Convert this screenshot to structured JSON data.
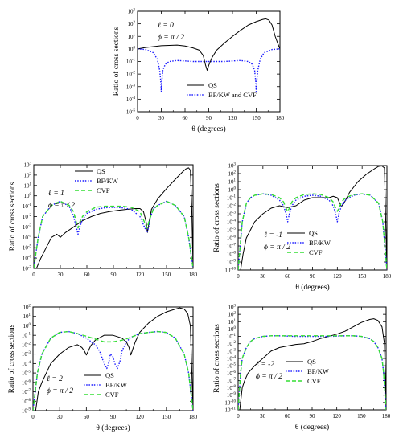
{
  "chart_data": [
    {
      "type": "line",
      "ylabel": "Ratio of cross sections",
      "xlabel": "θ (degrees)",
      "xlim": [
        0,
        180
      ],
      "xticks": [
        0,
        30,
        60,
        90,
        120,
        150,
        180
      ],
      "ylog": true,
      "ylim_exp": [
        -5,
        3
      ],
      "ytick_step": 1,
      "annotations": [
        "ℓ = 0",
        "ϕ = π / 2"
      ],
      "legend_position": "lower-right",
      "series": [
        {
          "name": "QS",
          "color": "#000000",
          "dash": "solid",
          "x": [
            0,
            10,
            30,
            50,
            60,
            70,
            78,
            83,
            86,
            88,
            90,
            94,
            100,
            110,
            120,
            130,
            140,
            150,
            158,
            162,
            166,
            170,
            174,
            177,
            180
          ],
          "y": [
            1,
            1.3,
            1.8,
            2,
            1.7,
            1.2,
            0.8,
            0.3,
            0.05,
            0.02,
            0.05,
            0.2,
            0.8,
            3,
            10,
            30,
            80,
            150,
            220,
            250,
            200,
            80,
            10,
            3,
            1
          ]
        },
        {
          "name": "BF/KW and CVF",
          "color": "#1a1aff",
          "dash": "dot",
          "x": [
            0,
            10,
            20,
            25,
            28,
            29.5,
            30,
            30.5,
            32,
            35,
            40,
            50,
            60,
            70,
            80,
            90,
            100,
            110,
            120,
            130,
            140,
            145,
            148,
            149.5,
            150,
            150.5,
            152,
            155,
            160,
            170,
            180
          ],
          "y": [
            1,
            0.9,
            0.5,
            0.15,
            0.02,
            0.002,
            0.0004,
            0.002,
            0.02,
            0.06,
            0.1,
            0.12,
            0.11,
            0.1,
            0.1,
            0.1,
            0.1,
            0.1,
            0.11,
            0.12,
            0.1,
            0.06,
            0.02,
            0.002,
            0.0004,
            0.002,
            0.02,
            0.15,
            0.5,
            0.9,
            1
          ]
        }
      ]
    },
    {
      "type": "line",
      "ylabel": "Ratio of cross sections",
      "xlabel": "",
      "xlim": [
        0,
        180
      ],
      "xticks": [
        0,
        30,
        60,
        90,
        120,
        150,
        180
      ],
      "ylog": true,
      "ylim_exp": [
        -7,
        3
      ],
      "ytick_step": 1,
      "annotations": [
        "ℓ = 1",
        "ϕ = π / 2"
      ],
      "legend_position": "top-left",
      "series": [
        {
          "name": "QS",
          "color": "#000000",
          "dash": "solid",
          "x": [
            3,
            8,
            14,
            20,
            26,
            30,
            36,
            45,
            55,
            65,
            75,
            85,
            95,
            105,
            115,
            120,
            124,
            127,
            128.5,
            130,
            133,
            140,
            150,
            160,
            168,
            172,
            175,
            177,
            178.5,
            180
          ],
          "y": [
            1e-07,
            1e-06,
            1e-05,
            0.0001,
            0.0002,
            0.0001,
            0.0003,
            0.001,
            0.004,
            0.01,
            0.02,
            0.03,
            0.04,
            0.05,
            0.06,
            0.06,
            0.03,
            0.003,
            0.0003,
            0.002,
            0.05,
            0.5,
            5,
            40,
            200,
            400,
            500,
            300,
            0.1,
            1e-07
          ]
        },
        {
          "name": "BF/KW",
          "color": "#1a1aff",
          "dash": "dot",
          "x": [
            0,
            5,
            10,
            20,
            30,
            40,
            45,
            48,
            50,
            52,
            55,
            60,
            70,
            80,
            90,
            100,
            110,
            120,
            125,
            128,
            130,
            132,
            135,
            140,
            150,
            160,
            170,
            175,
            180
          ],
          "y": [
            1e-07,
            0.0001,
            0.01,
            0.12,
            0.3,
            0.1,
            0.01,
            0.001,
            0.0002,
            0.001,
            0.005,
            0.02,
            0.05,
            0.07,
            0.08,
            0.07,
            0.05,
            0.01,
            0.001,
            0.0003,
            0.001,
            0.01,
            0.05,
            0.12,
            0.3,
            0.12,
            0.01,
            0.0001,
            1e-07
          ]
        },
        {
          "name": "CVF",
          "color": "#33dd33",
          "dash": "dash",
          "x": [
            0,
            5,
            10,
            20,
            30,
            40,
            45,
            48,
            50,
            52,
            55,
            60,
            70,
            80,
            90,
            100,
            110,
            120,
            125,
            128,
            130,
            132,
            135,
            140,
            150,
            160,
            170,
            175,
            180
          ],
          "y": [
            1e-07,
            0.0001,
            0.01,
            0.12,
            0.3,
            0.12,
            0.03,
            0.003,
            0.0008,
            0.003,
            0.01,
            0.03,
            0.08,
            0.1,
            0.1,
            0.1,
            0.08,
            0.03,
            0.003,
            0.0008,
            0.003,
            0.01,
            0.05,
            0.12,
            0.3,
            0.12,
            0.01,
            0.0001,
            1e-07
          ]
        }
      ]
    },
    {
      "type": "line",
      "ylabel": "Ratio of cross sections",
      "xlabel": "θ (degrees)",
      "xlim": [
        0,
        180
      ],
      "xticks": [
        0,
        30,
        60,
        90,
        120,
        150,
        180
      ],
      "ylog": true,
      "ylim_exp": [
        -10,
        3
      ],
      "ytick_step": 1,
      "annotations": [
        "ℓ = -1",
        "ϕ = π / 2"
      ],
      "legend_position": "lower-right",
      "series": [
        {
          "name": "QS",
          "color": "#000000",
          "dash": "solid",
          "x": [
            3,
            6,
            10,
            15,
            20,
            30,
            40,
            50,
            60,
            70,
            80,
            90,
            100,
            110,
            115,
            120,
            123,
            125,
            128,
            135,
            145,
            155,
            165,
            170,
            174,
            177,
            180
          ],
          "y": [
            1e-10,
            1e-08,
            1e-06,
            1e-05,
            0.0001,
            0.001,
            0.005,
            0.01,
            0.006,
            0.01,
            0.05,
            0.1,
            0.1,
            0.1,
            0.15,
            0.1,
            0.02,
            0.008,
            0.02,
            0.5,
            10,
            80,
            400,
            800,
            900,
            500,
            1e-10
          ]
        },
        {
          "name": "BF/KW",
          "color": "#1a1aff",
          "dash": "dot",
          "x": [
            0,
            5,
            10,
            15,
            20,
            30,
            40,
            50,
            55,
            58,
            60,
            62,
            65,
            70,
            80,
            90,
            100,
            110,
            115,
            118,
            120,
            122,
            125,
            130,
            140,
            150,
            160,
            170,
            175,
            180
          ],
          "y": [
            1e-10,
            0.0001,
            0.02,
            0.1,
            0.2,
            0.3,
            0.2,
            0.05,
            0.01,
            0.001,
            0.0001,
            0.001,
            0.01,
            0.05,
            0.15,
            0.2,
            0.15,
            0.05,
            0.01,
            0.001,
            0.0001,
            0.001,
            0.01,
            0.05,
            0.2,
            0.3,
            0.2,
            0.02,
            0.0001,
            1e-10
          ]
        },
        {
          "name": "CVF",
          "color": "#33dd33",
          "dash": "dash",
          "x": [
            0,
            5,
            10,
            15,
            20,
            30,
            40,
            50,
            55,
            58,
            60,
            62,
            65,
            70,
            80,
            90,
            100,
            110,
            115,
            118,
            120,
            122,
            125,
            130,
            140,
            150,
            160,
            170,
            175,
            180
          ],
          "y": [
            1e-10,
            0.0001,
            0.02,
            0.1,
            0.2,
            0.3,
            0.25,
            0.1,
            0.03,
            0.005,
            0.002,
            0.005,
            0.03,
            0.1,
            0.25,
            0.3,
            0.25,
            0.1,
            0.03,
            0.005,
            0.002,
            0.005,
            0.03,
            0.1,
            0.25,
            0.3,
            0.2,
            0.02,
            0.0001,
            1e-10
          ]
        }
      ]
    },
    {
      "type": "line",
      "ylabel": "Ratio of cross sections",
      "xlabel": "θ (degrees)",
      "xlim": [
        0,
        180
      ],
      "xticks": [
        0,
        30,
        60,
        90,
        120,
        150,
        180
      ],
      "ylog": true,
      "ylim_exp": [
        -9,
        2
      ],
      "ytick_step": 1,
      "annotations": [
        "ℓ = 2",
        "ϕ = π / 2"
      ],
      "legend_position": "lower-right",
      "series": [
        {
          "name": "QS",
          "color": "#000000",
          "dash": "solid",
          "x": [
            3,
            6,
            10,
            15,
            20,
            30,
            40,
            50,
            55,
            58,
            60,
            62,
            65,
            70,
            80,
            90,
            100,
            105,
            108,
            110,
            112,
            115,
            120,
            130,
            140,
            150,
            160,
            165,
            170,
            174,
            177,
            180
          ],
          "y": [
            1e-09,
            1e-07,
            1e-06,
            1e-05,
            0.0001,
            0.001,
            0.005,
            0.01,
            0.005,
            0.002,
            0.0008,
            0.002,
            0.008,
            0.03,
            0.1,
            0.1,
            0.05,
            0.02,
            0.005,
            0.0008,
            0.003,
            0.02,
            0.2,
            2,
            10,
            30,
            60,
            80,
            60,
            20,
            1,
            1e-09
          ]
        },
        {
          "name": "BF/KW",
          "color": "#1a1aff",
          "dash": "dot",
          "x": [
            0,
            5,
            10,
            20,
            30,
            40,
            50,
            60,
            70,
            75,
            80,
            83,
            85,
            87,
            90,
            92,
            95,
            98,
            100,
            105,
            110,
            120,
            130,
            140,
            150,
            160,
            170,
            175,
            180
          ],
          "y": [
            1e-09,
            1e-05,
            0.001,
            0.05,
            0.2,
            0.25,
            0.15,
            0.05,
            0.01,
            0.002,
            0.0001,
            3e-05,
            0.0001,
            0.001,
            0.0005,
            0.0001,
            3e-05,
            0.0002,
            0.002,
            0.02,
            0.06,
            0.15,
            0.2,
            0.25,
            0.2,
            0.05,
            0.001,
            1e-05,
            1e-09
          ]
        },
        {
          "name": "CVF",
          "color": "#33dd33",
          "dash": "dash",
          "x": [
            0,
            5,
            10,
            20,
            30,
            40,
            50,
            60,
            70,
            80,
            90,
            100,
            110,
            120,
            130,
            140,
            150,
            160,
            170,
            175,
            180
          ],
          "y": [
            1e-09,
            1e-05,
            0.001,
            0.05,
            0.2,
            0.25,
            0.15,
            0.08,
            0.04,
            0.02,
            0.02,
            0.03,
            0.06,
            0.15,
            0.2,
            0.25,
            0.2,
            0.05,
            0.001,
            1e-05,
            1e-09
          ]
        }
      ]
    },
    {
      "type": "line",
      "ylabel": "Ratio of cross sections",
      "xlabel": "θ (degrees)",
      "xlim": [
        0,
        180
      ],
      "xticks": [
        0,
        30,
        60,
        90,
        120,
        150,
        180
      ],
      "ylog": true,
      "ylim_exp": [
        -11,
        3
      ],
      "ytick_step": 1,
      "annotations": [
        "ℓ = -2",
        "ϕ = π / 2"
      ],
      "legend_position": "lower-right",
      "series": [
        {
          "name": "QS",
          "color": "#000000",
          "dash": "solid",
          "x": [
            2,
            5,
            8,
            12,
            20,
            30,
            40,
            50,
            60,
            70,
            80,
            90,
            100,
            110,
            120,
            130,
            140,
            150,
            160,
            165,
            170,
            175,
            178,
            180
          ],
          "y": [
            1e-11,
            1e-08,
            1e-07,
            1e-06,
            1e-05,
            0.0001,
            0.001,
            0.003,
            0.005,
            0.008,
            0.01,
            0.02,
            0.05,
            0.1,
            0.2,
            0.5,
            2,
            8,
            20,
            25,
            15,
            2,
            0.01,
            1e-11
          ]
        },
        {
          "name": "BF/KW",
          "color": "#1a1aff",
          "dash": "dot",
          "x": [
            0,
            3,
            5,
            10,
            15,
            20,
            30,
            40,
            50,
            60,
            70,
            80,
            90,
            100,
            110,
            120,
            130,
            140,
            150,
            160,
            165,
            170,
            175,
            177,
            180
          ],
          "y": [
            1e-11,
            1e-06,
            0.0001,
            0.003,
            0.02,
            0.05,
            0.1,
            0.12,
            0.12,
            0.11,
            0.1,
            0.1,
            0.1,
            0.1,
            0.1,
            0.11,
            0.12,
            0.12,
            0.1,
            0.05,
            0.02,
            0.003,
            0.0001,
            1e-06,
            1e-11
          ]
        },
        {
          "name": "CVF",
          "color": "#33dd33",
          "dash": "dash",
          "x": [
            0,
            3,
            5,
            10,
            15,
            20,
            30,
            40,
            50,
            60,
            70,
            80,
            90,
            100,
            110,
            120,
            130,
            140,
            150,
            160,
            165,
            170,
            175,
            177,
            180
          ],
          "y": [
            1e-11,
            1e-06,
            0.0001,
            0.003,
            0.02,
            0.05,
            0.1,
            0.12,
            0.12,
            0.12,
            0.12,
            0.12,
            0.12,
            0.12,
            0.12,
            0.12,
            0.12,
            0.12,
            0.1,
            0.05,
            0.02,
            0.003,
            0.0001,
            1e-06,
            1e-11
          ]
        }
      ]
    }
  ]
}
